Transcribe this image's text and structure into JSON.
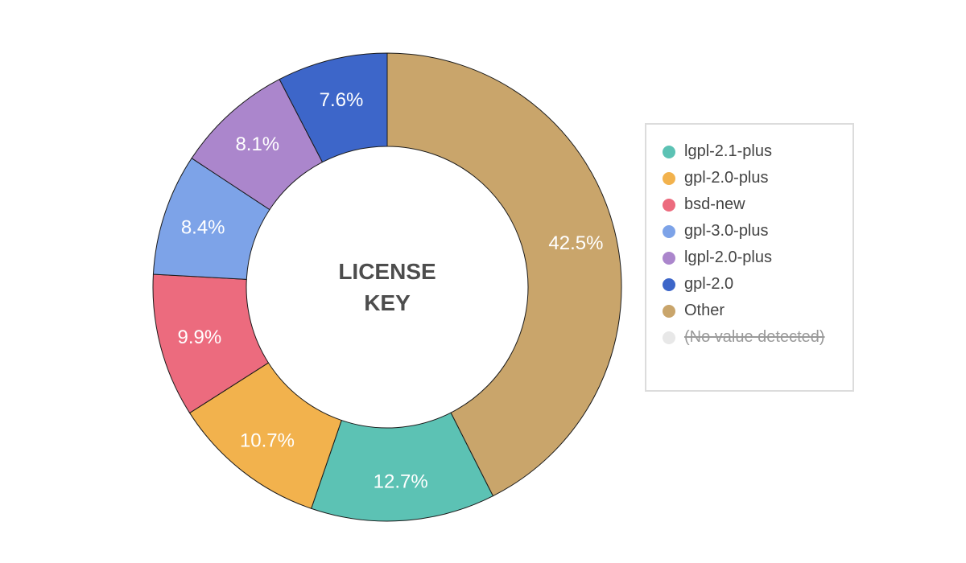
{
  "chart_data": {
    "type": "pie",
    "style": "donut",
    "center_label": [
      "LICENSE",
      "KEY"
    ],
    "series": [
      {
        "name": "Other",
        "value": 42.5,
        "label": "42.5%",
        "color": "#c9a56b"
      },
      {
        "name": "lgpl-2.1-plus",
        "value": 12.7,
        "label": "12.7%",
        "color": "#5cc2b4"
      },
      {
        "name": "gpl-2.0-plus",
        "value": 10.7,
        "label": "10.7%",
        "color": "#f2b24d"
      },
      {
        "name": "bsd-new",
        "value": 9.9,
        "label": "9.9%",
        "color": "#ec6b7e"
      },
      {
        "name": "gpl-3.0-plus",
        "value": 8.4,
        "label": "8.4%",
        "color": "#7da3e8"
      },
      {
        "name": "lgpl-2.0-plus",
        "value": 8.1,
        "label": "8.1%",
        "color": "#ab86cc"
      },
      {
        "name": "gpl-2.0",
        "value": 7.6,
        "label": "7.6%",
        "color": "#3d66c9"
      }
    ],
    "legend": {
      "placement": "right",
      "items": [
        {
          "label": "lgpl-2.1-plus",
          "color": "#5cc2b4",
          "disabled": false
        },
        {
          "label": "gpl-2.0-plus",
          "color": "#f2b24d",
          "disabled": false
        },
        {
          "label": "bsd-new",
          "color": "#ec6b7e",
          "disabled": false
        },
        {
          "label": "gpl-3.0-plus",
          "color": "#7da3e8",
          "disabled": false
        },
        {
          "label": "lgpl-2.0-plus",
          "color": "#ab86cc",
          "disabled": false
        },
        {
          "label": "gpl-2.0",
          "color": "#3d66c9",
          "disabled": false
        },
        {
          "label": "Other",
          "color": "#c9a56b",
          "disabled": false
        },
        {
          "label": "(No value detected)",
          "color": "#e8e8e8",
          "disabled": true
        }
      ]
    }
  }
}
